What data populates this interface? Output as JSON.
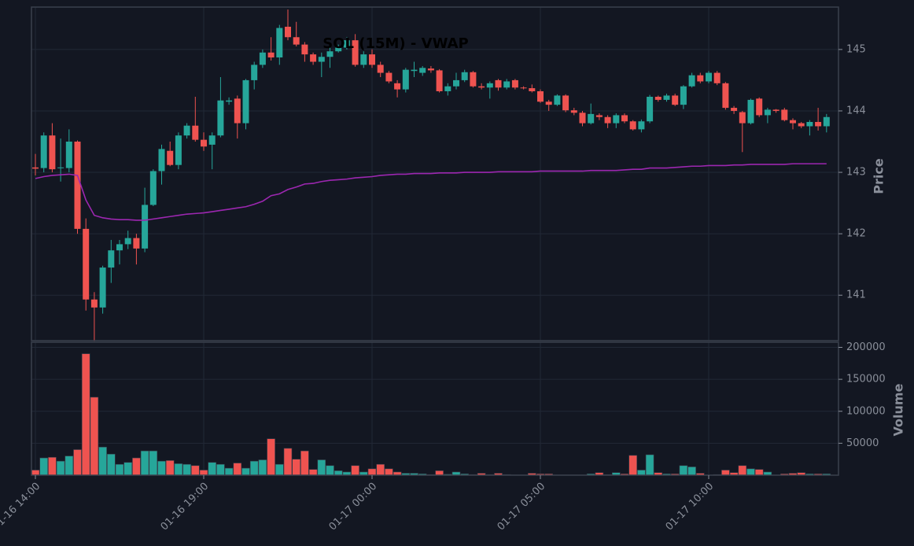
{
  "chart_data": {
    "type": "candlestick",
    "title": "SOL (15M) - VWAP",
    "ylabel": "Price",
    "up_color": "#26a69a",
    "down_color": "#ef5350",
    "grid": true,
    "ylim": [
      140.26,
      145.69
    ],
    "yticks": [
      141,
      142,
      143,
      144,
      145
    ],
    "categories": [
      "01-16 14:00",
      null,
      null,
      null,
      null,
      null,
      null,
      null,
      null,
      null,
      null,
      null,
      null,
      null,
      null,
      null,
      null,
      null,
      null,
      null,
      "01-16 19:00",
      null,
      null,
      null,
      null,
      null,
      null,
      null,
      null,
      null,
      null,
      null,
      null,
      null,
      null,
      null,
      null,
      null,
      null,
      null,
      "01-17 00:00",
      null,
      null,
      null,
      null,
      null,
      null,
      null,
      null,
      null,
      null,
      null,
      null,
      null,
      null,
      null,
      null,
      null,
      null,
      null,
      "01-17 05:00",
      null,
      null,
      null,
      null,
      null,
      null,
      null,
      null,
      null,
      null,
      null,
      null,
      null,
      null,
      null,
      null,
      null,
      null,
      null,
      "01-17 10:00",
      null,
      null,
      null,
      null,
      null,
      null,
      null,
      null,
      null,
      null,
      null,
      null,
      null,
      null
    ],
    "open": [
      143.08,
      143.07,
      143.6,
      143.07,
      143.07,
      143.5,
      142.08,
      140.93,
      140.8,
      141.45,
      141.73,
      141.83,
      141.93,
      141.76,
      142.47,
      143.02,
      143.35,
      143.12,
      143.6,
      143.76,
      143.53,
      143.45,
      143.6,
      144.15,
      144.2,
      143.8,
      144.5,
      144.75,
      144.95,
      144.87,
      145.37,
      145.2,
      145.08,
      144.92,
      144.8,
      144.88,
      144.97,
      145.03,
      145.15,
      144.75,
      144.92,
      144.75,
      144.62,
      144.45,
      144.35,
      144.65,
      144.62,
      144.69,
      144.66,
      144.32,
      144.4,
      144.5,
      144.63,
      144.4,
      144.38,
      144.5,
      144.38,
      144.5,
      144.38,
      144.37,
      144.32,
      144.15,
      144.1,
      144.25,
      144.01,
      143.97,
      143.8,
      143.93,
      143.9,
      143.8,
      143.93,
      143.83,
      143.7,
      143.83,
      144.23,
      144.18,
      144.25,
      144.1,
      144.4,
      144.58,
      144.48,
      144.62,
      144.45,
      144.05,
      143.98,
      143.8,
      144.2,
      143.93,
      144.02,
      144.02,
      143.85,
      143.8,
      143.75,
      143.82,
      143.75
    ],
    "high": [
      143.3,
      143.65,
      143.8,
      143.55,
      143.7,
      143.52,
      142.25,
      141.05,
      141.48,
      141.9,
      141.9,
      142.05,
      142.0,
      142.75,
      143.05,
      143.45,
      143.5,
      143.65,
      143.8,
      144.23,
      143.65,
      143.65,
      144.55,
      144.22,
      144.25,
      144.52,
      144.8,
      145.0,
      145.2,
      145.4,
      145.65,
      145.45,
      145.12,
      144.95,
      144.95,
      145.05,
      145.08,
      145.2,
      145.25,
      144.97,
      145.0,
      144.8,
      144.65,
      144.5,
      144.7,
      144.8,
      144.73,
      144.73,
      144.68,
      144.45,
      144.62,
      144.67,
      144.65,
      144.45,
      144.48,
      144.52,
      144.52,
      144.52,
      144.4,
      144.43,
      144.35,
      144.18,
      144.27,
      144.27,
      144.05,
      144.0,
      144.12,
      143.96,
      143.93,
      143.96,
      143.96,
      143.85,
      143.86,
      144.26,
      144.25,
      144.28,
      144.28,
      144.42,
      144.62,
      144.62,
      144.65,
      144.65,
      144.47,
      144.08,
      144.0,
      144.2,
      144.22,
      144.05,
      144.03,
      144.05,
      143.88,
      143.82,
      143.85,
      144.05,
      143.95
    ],
    "low": [
      142.95,
      143.0,
      143.0,
      142.85,
      143.0,
      142.0,
      140.75,
      140.25,
      140.7,
      141.2,
      141.5,
      141.75,
      141.5,
      141.7,
      142.45,
      142.8,
      143.1,
      143.05,
      143.55,
      143.5,
      143.35,
      143.05,
      143.57,
      144.1,
      143.55,
      143.7,
      144.35,
      144.7,
      144.82,
      144.75,
      145.15,
      145.05,
      144.8,
      144.75,
      144.55,
      144.7,
      144.95,
      145.0,
      144.72,
      144.7,
      144.7,
      144.55,
      144.45,
      144.22,
      144.3,
      144.55,
      144.57,
      144.62,
      144.3,
      144.25,
      144.35,
      144.47,
      144.38,
      144.35,
      144.2,
      144.33,
      144.35,
      144.35,
      144.35,
      144.3,
      144.13,
      144.0,
      144.08,
      143.98,
      143.93,
      143.75,
      143.78,
      143.85,
      143.72,
      143.72,
      143.8,
      143.68,
      143.65,
      143.8,
      144.15,
      144.15,
      144.08,
      144.03,
      144.38,
      144.45,
      144.45,
      144.42,
      144.02,
      143.95,
      143.33,
      143.78,
      143.9,
      143.8,
      143.97,
      143.83,
      143.7,
      143.72,
      143.6,
      143.68,
      143.65
    ],
    "close": [
      143.06,
      143.6,
      143.05,
      143.08,
      143.5,
      142.08,
      140.93,
      140.8,
      141.45,
      141.73,
      141.83,
      141.93,
      141.76,
      142.47,
      143.02,
      143.38,
      143.12,
      143.6,
      143.76,
      143.53,
      143.42,
      143.6,
      144.17,
      144.17,
      143.8,
      144.5,
      144.75,
      144.95,
      144.87,
      145.35,
      145.2,
      145.08,
      144.92,
      144.8,
      144.88,
      144.97,
      145.03,
      145.15,
      144.75,
      144.92,
      144.75,
      144.62,
      144.48,
      144.35,
      144.67,
      144.67,
      144.7,
      144.66,
      144.32,
      144.4,
      144.5,
      144.63,
      144.4,
      144.38,
      144.45,
      144.38,
      144.48,
      144.38,
      144.37,
      144.32,
      144.15,
      144.1,
      144.25,
      144.01,
      143.97,
      143.8,
      143.95,
      143.9,
      143.8,
      143.93,
      143.83,
      143.7,
      143.83,
      144.23,
      144.18,
      144.25,
      144.1,
      144.4,
      144.58,
      144.48,
      144.62,
      144.45,
      144.05,
      144.0,
      143.8,
      144.18,
      143.93,
      144.02,
      144.0,
      143.85,
      143.8,
      143.75,
      143.82,
      143.75,
      143.9
    ],
    "vwap": {
      "color": "#9c27b0",
      "values": [
        142.9,
        142.93,
        142.95,
        142.96,
        142.97,
        142.95,
        142.55,
        142.3,
        142.26,
        142.24,
        142.23,
        142.23,
        142.22,
        142.22,
        142.24,
        142.26,
        142.28,
        142.3,
        142.32,
        142.33,
        142.34,
        142.36,
        142.38,
        142.4,
        142.42,
        142.44,
        142.48,
        142.53,
        142.62,
        142.65,
        142.72,
        142.76,
        142.81,
        142.82,
        142.85,
        142.87,
        142.88,
        142.89,
        142.91,
        142.92,
        142.93,
        142.95,
        142.96,
        142.97,
        142.97,
        142.98,
        142.98,
        142.98,
        142.99,
        142.99,
        142.99,
        143.0,
        143.0,
        143.0,
        143.0,
        143.01,
        143.01,
        143.01,
        143.01,
        143.01,
        143.02,
        143.02,
        143.02,
        143.02,
        143.02,
        143.02,
        143.03,
        143.03,
        143.03,
        143.03,
        143.04,
        143.05,
        143.05,
        143.07,
        143.07,
        143.07,
        143.08,
        143.09,
        143.1,
        143.1,
        143.11,
        143.11,
        143.11,
        143.12,
        143.12,
        143.13,
        143.13,
        143.13,
        143.13,
        143.13,
        143.14,
        143.14,
        143.14,
        143.14,
        143.14
      ]
    },
    "volume": {
      "ylabel": "Volume",
      "ylim": [
        0,
        208000
      ],
      "yticks": [
        50000,
        100000,
        150000,
        200000
      ],
      "values": [
        8000,
        27000,
        28000,
        22000,
        30000,
        40000,
        190000,
        122000,
        44000,
        33000,
        17000,
        20000,
        27000,
        38000,
        38000,
        22000,
        23000,
        18000,
        17000,
        15000,
        8000,
        20000,
        17000,
        11000,
        19000,
        11000,
        22000,
        24000,
        57000,
        17000,
        42000,
        25000,
        38000,
        9000,
        24000,
        15000,
        7000,
        5000,
        15000,
        5000,
        10000,
        17000,
        10000,
        5000,
        3000,
        3000,
        2000,
        1000,
        7000,
        1500,
        5000,
        2000,
        1000,
        3000,
        1000,
        3000,
        1000,
        500,
        500,
        3000,
        2000,
        2000,
        500,
        500,
        500,
        500,
        2000,
        4000,
        1000,
        4000,
        2000,
        31000,
        8000,
        32000,
        4000,
        2000,
        2000,
        15000,
        13000,
        3000,
        500,
        1000,
        8000,
        4000,
        15000,
        10000,
        9000,
        5000,
        500,
        2000,
        3000,
        4000,
        2000,
        2000,
        2000
      ]
    }
  }
}
